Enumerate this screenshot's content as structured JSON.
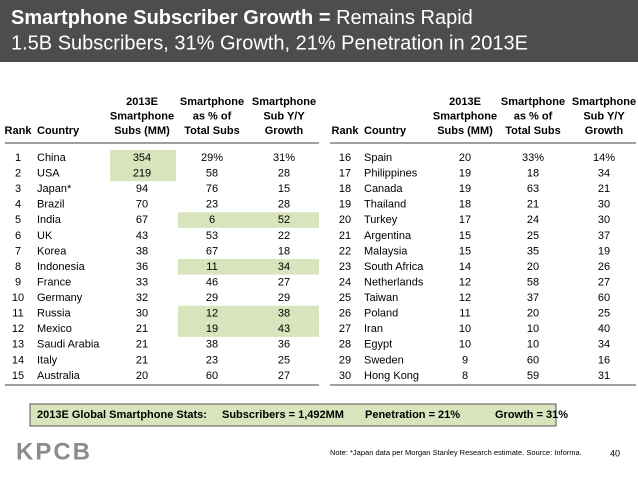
{
  "header": {
    "title_bold": "Smartphone Subscriber Growth =",
    "title_rest": "Remains Rapid",
    "subtitle": "1.5B Subscribers, 31% Growth, 21% Penetration in 2013E"
  },
  "table": {
    "columns_left": [
      [
        "Rank"
      ],
      [
        "Country"
      ],
      [
        "2013E",
        "Smartphone",
        "Subs (MM)"
      ],
      [
        "Smartphone",
        "as % of",
        "Total Subs"
      ],
      [
        "Smartphone",
        "Sub Y/Y",
        "Growth"
      ]
    ],
    "columns_right": [
      [
        "Rank"
      ],
      [
        "Country"
      ],
      [
        "2013E",
        "Smartphone",
        "Subs (MM)"
      ],
      [
        "Smartphone",
        "as % of",
        "Total Subs"
      ],
      [
        "Smartphone",
        "Sub Y/Y",
        "Growth"
      ]
    ],
    "rows_left": [
      [
        1,
        "China",
        354,
        "29%",
        "31%"
      ],
      [
        2,
        "USA",
        219,
        58,
        28
      ],
      [
        3,
        "Japan*",
        94,
        76,
        15
      ],
      [
        4,
        "Brazil",
        70,
        23,
        28
      ],
      [
        5,
        "India",
        67,
        6,
        52
      ],
      [
        6,
        "UK",
        43,
        53,
        22
      ],
      [
        7,
        "Korea",
        38,
        67,
        18
      ],
      [
        8,
        "Indonesia",
        36,
        11,
        34
      ],
      [
        9,
        "France",
        33,
        46,
        27
      ],
      [
        10,
        "Germany",
        32,
        29,
        29
      ],
      [
        11,
        "Russia",
        30,
        12,
        38
      ],
      [
        12,
        "Mexico",
        21,
        19,
        43
      ],
      [
        13,
        "Saudi Arabia",
        21,
        38,
        36
      ],
      [
        14,
        "Italy",
        21,
        23,
        25
      ],
      [
        15,
        "Australia",
        20,
        60,
        27
      ]
    ],
    "rows_right": [
      [
        16,
        "Spain",
        20,
        "33%",
        "14%"
      ],
      [
        17,
        "Philippines",
        19,
        18,
        34
      ],
      [
        18,
        "Canada",
        19,
        63,
        21
      ],
      [
        19,
        "Thailand",
        18,
        21,
        30
      ],
      [
        20,
        "Turkey",
        17,
        24,
        30
      ],
      [
        21,
        "Argentina",
        15,
        25,
        37
      ],
      [
        22,
        "Malaysia",
        15,
        35,
        19
      ],
      [
        23,
        "South Africa",
        14,
        20,
        26
      ],
      [
        24,
        "Netherlands",
        12,
        58,
        27
      ],
      [
        25,
        "Taiwan",
        12,
        37,
        60
      ],
      [
        26,
        "Poland",
        11,
        20,
        25
      ],
      [
        27,
        "Iran",
        10,
        10,
        40
      ],
      [
        28,
        "Egypt",
        10,
        10,
        34
      ],
      [
        29,
        "Sweden",
        9,
        60,
        16
      ],
      [
        30,
        "Hong Kong",
        8,
        59,
        31
      ]
    ]
  },
  "stats": {
    "label": "2013E Global Smartphone Stats:",
    "subscribers": "Subscribers = 1,492MM",
    "penetration": "Penetration = 21%",
    "growth": "Growth = 31%"
  },
  "footer": {
    "logo": "KPCB",
    "note": "Note: *Japan data per Morgan Stanley Research estimate.  Source: Informa.",
    "page": "40"
  }
}
